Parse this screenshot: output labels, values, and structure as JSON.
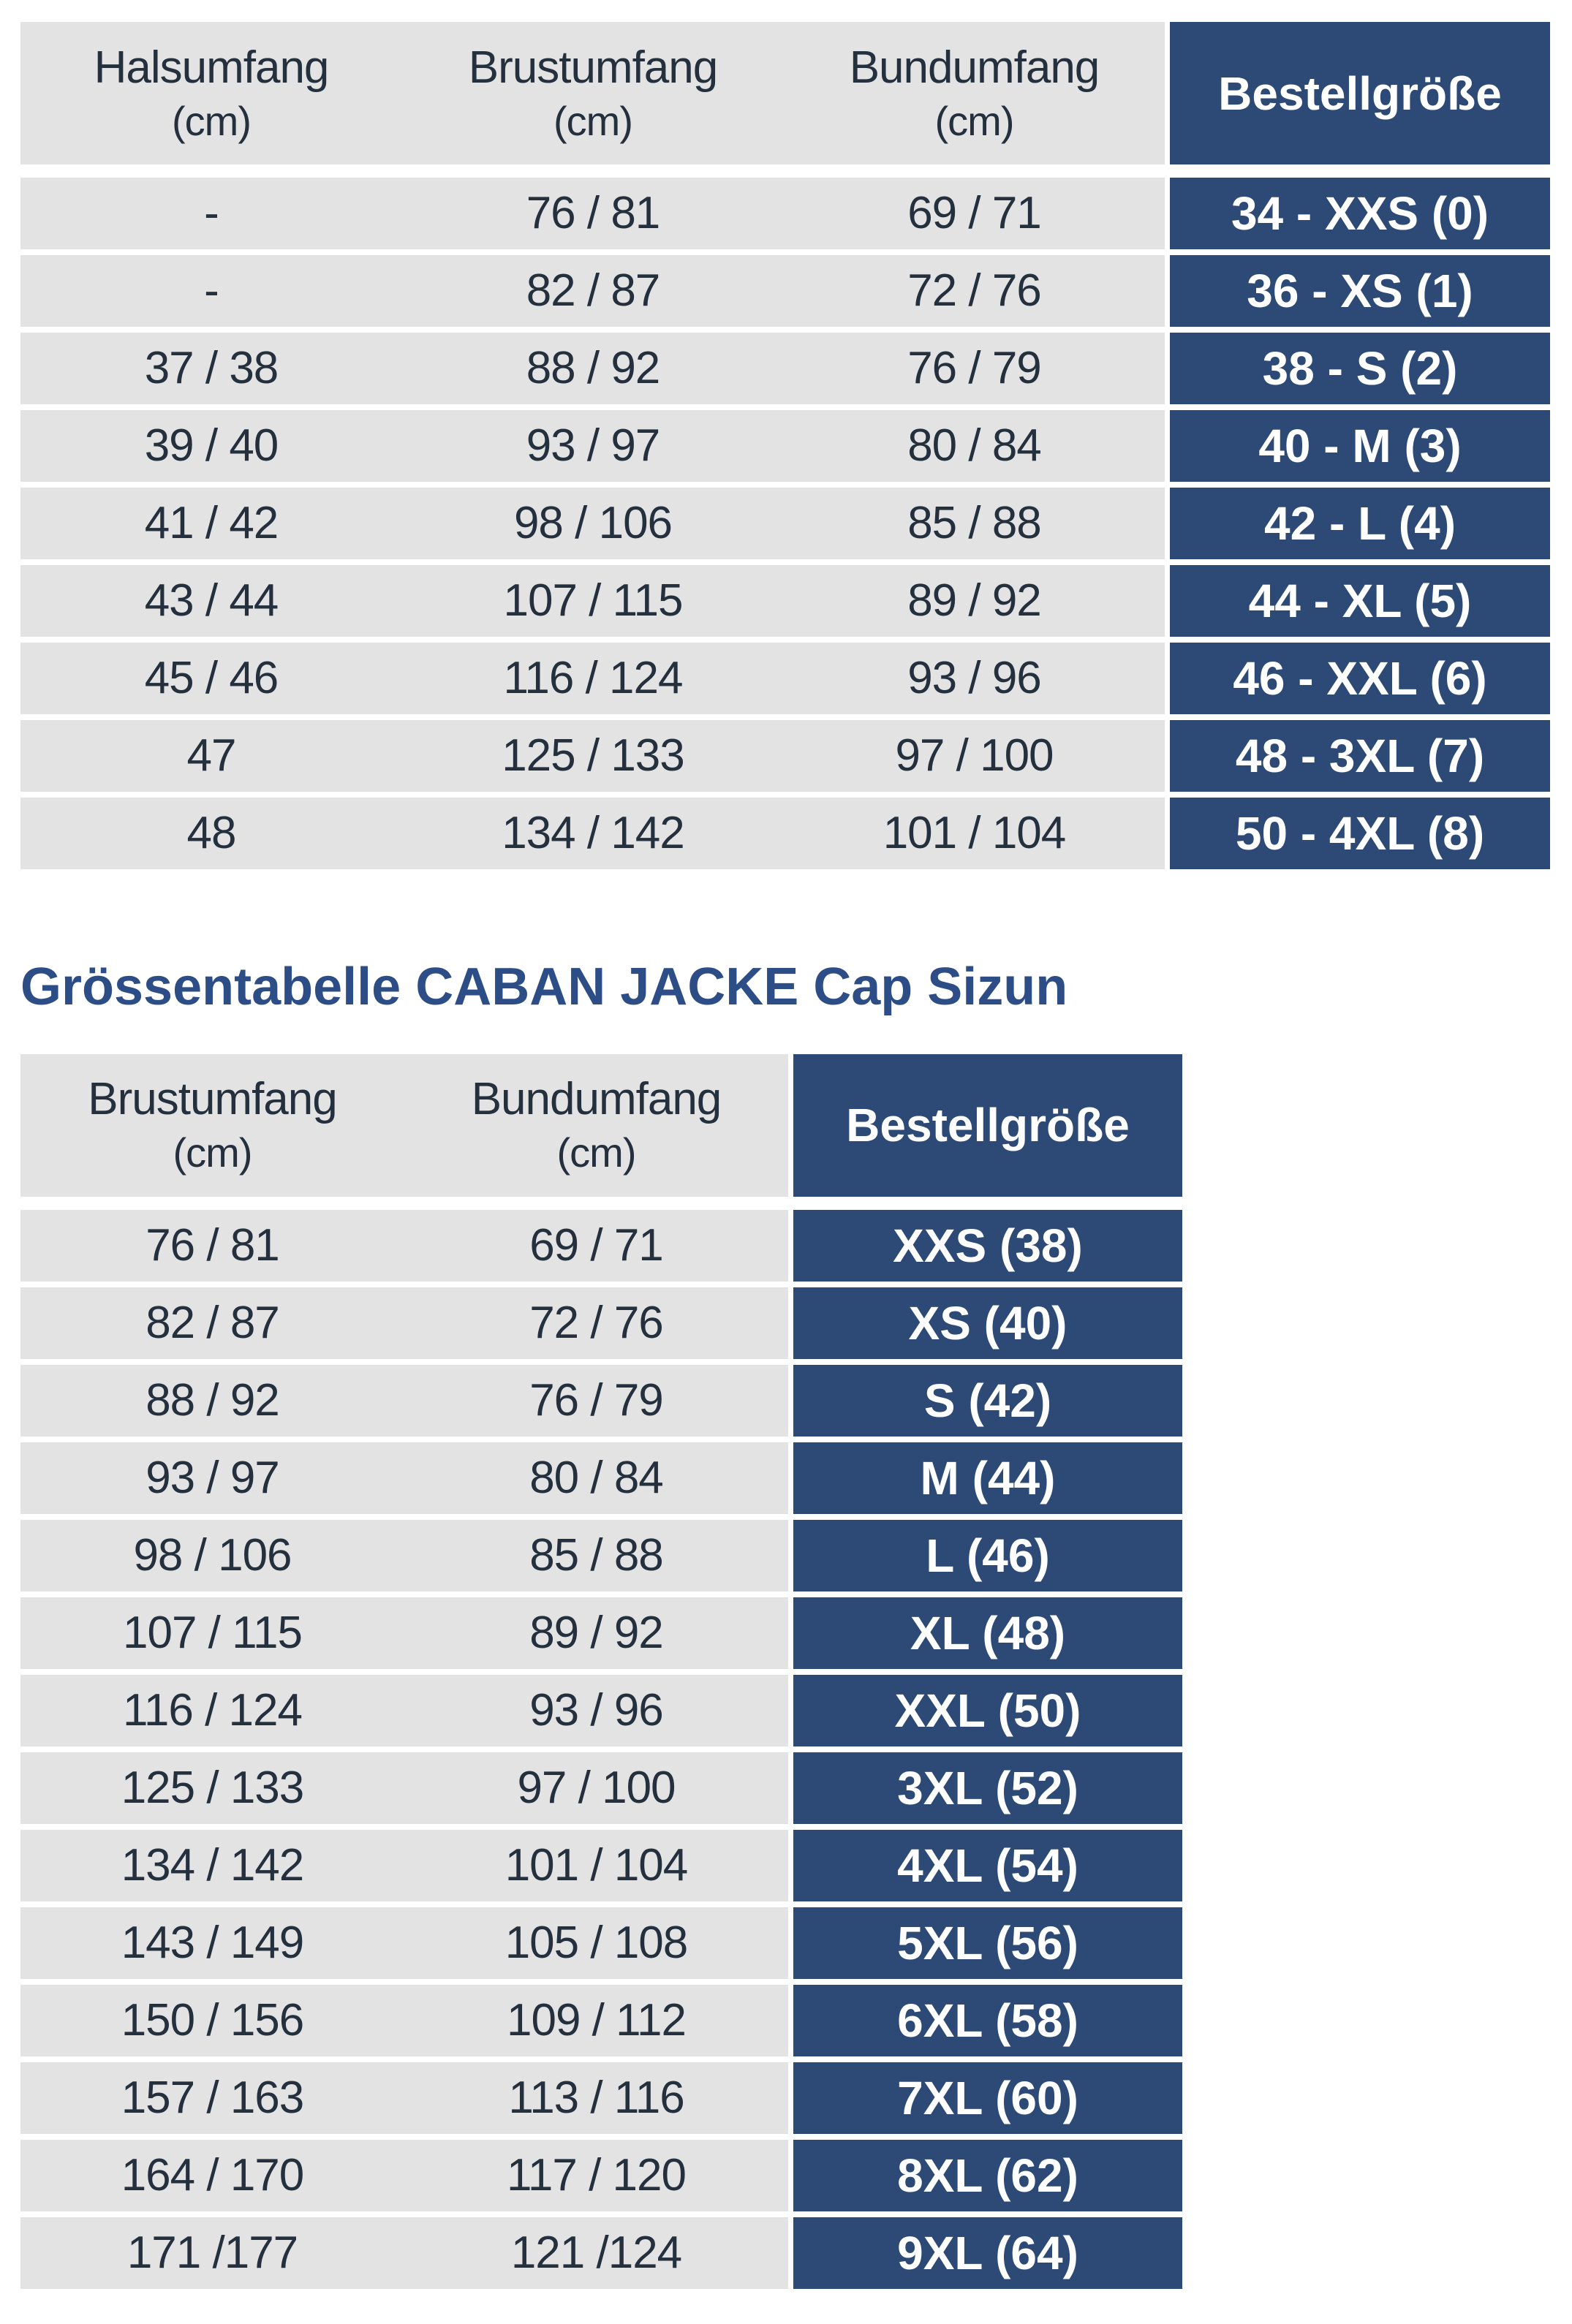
{
  "heading": "Grössentabelle CABAN JACKE Cap Sizun",
  "colors": {
    "navy": "#2d4a76",
    "light_gray": "#e3e3e3",
    "cell_text": "#24303e",
    "heading_blue": "#2d4d86",
    "navy_text": "#ffffff"
  },
  "table1": {
    "columns": [
      {
        "label": "Halsumfang",
        "unit": "(cm)"
      },
      {
        "label": "Brustumfang",
        "unit": "(cm)"
      },
      {
        "label": "Bundumfang",
        "unit": "(cm)"
      }
    ],
    "order_column": "Bestellgröße",
    "rows": [
      [
        "-",
        "76 / 81",
        "69 / 71",
        "34 - XXS (0)"
      ],
      [
        "-",
        "82 / 87",
        "72 / 76",
        "36 - XS (1)"
      ],
      [
        "37 / 38",
        "88 / 92",
        "76 / 79",
        "38 - S (2)"
      ],
      [
        "39 / 40",
        "93 / 97",
        "80 / 84",
        "40 - M (3)"
      ],
      [
        "41 / 42",
        "98 / 106",
        "85 / 88",
        "42 - L (4)"
      ],
      [
        "43 / 44",
        "107 / 115",
        "89 / 92",
        "44 - XL (5)"
      ],
      [
        "45 / 46",
        "116 / 124",
        "93 / 96",
        "46 - XXL (6)"
      ],
      [
        "47",
        "125 / 133",
        "97 / 100",
        "48 - 3XL (7)"
      ],
      [
        "48",
        "134 / 142",
        "101 / 104",
        "50 - 4XL (8)"
      ]
    ]
  },
  "table2": {
    "columns": [
      {
        "label": "Brustumfang",
        "unit": "(cm)"
      },
      {
        "label": "Bundumfang",
        "unit": "(cm)"
      }
    ],
    "order_column": "Bestellgröße",
    "rows": [
      [
        "76 / 81",
        "69 / 71",
        "XXS (38)"
      ],
      [
        "82 / 87",
        "72 / 76",
        "XS (40)"
      ],
      [
        "88 / 92",
        "76 / 79",
        "S (42)"
      ],
      [
        "93 / 97",
        "80 / 84",
        "M (44)"
      ],
      [
        "98 / 106",
        "85 / 88",
        "L (46)"
      ],
      [
        "107 / 115",
        "89 / 92",
        "XL (48)"
      ],
      [
        "116 / 124",
        "93 / 96",
        "XXL (50)"
      ],
      [
        "125 / 133",
        "97 / 100",
        "3XL (52)"
      ],
      [
        "134 / 142",
        "101 / 104",
        "4XL (54)"
      ],
      [
        "143 / 149",
        "105 / 108",
        "5XL (56)"
      ],
      [
        "150 / 156",
        "109 / 112",
        "6XL (58)"
      ],
      [
        "157 / 163",
        "113 / 116",
        "7XL (60)"
      ],
      [
        "164 / 170",
        "117 / 120",
        "8XL (62)"
      ],
      [
        "171 /177",
        "121 /124",
        "9XL (64)"
      ]
    ]
  }
}
